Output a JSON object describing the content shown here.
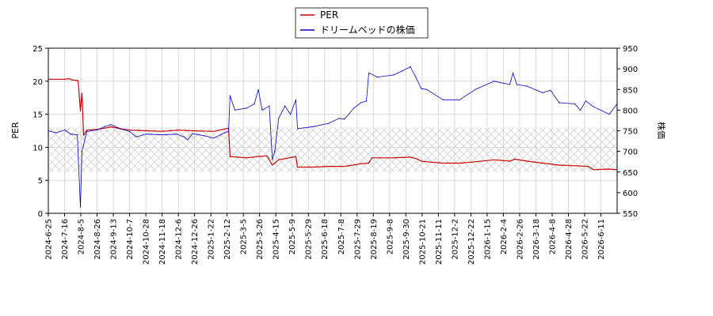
{
  "chart_data": {
    "type": "line",
    "legend": {
      "placement": "top-center",
      "entries": [
        {
          "name": "PER",
          "color": "#cc0000"
        },
        {
          "name": "ドリームベッドの株価",
          "color": "#0000cc"
        }
      ]
    },
    "xlabel": "",
    "ylabel_left": "PER",
    "ylabel_right": "株価",
    "ylim_left": [
      0,
      25
    ],
    "ylim_right": [
      550,
      950
    ],
    "yticks_left": [
      0,
      5,
      10,
      15,
      20,
      25
    ],
    "yticks_right": [
      550,
      600,
      650,
      700,
      750,
      800,
      850,
      900,
      950
    ],
    "grid": true,
    "xlim": [
      "2024-06-25",
      "2026-06-21"
    ],
    "x_tick_labels": [
      "2024-6-25",
      "2024-7-16",
      "2024-8-5",
      "2024-8-26",
      "2024-9-13",
      "2024-10-7",
      "2024-10-28",
      "2024-11-18",
      "2024-12-6",
      "2024-12-26",
      "2025-1-22",
      "2025-2-12",
      "2025-3-5",
      "2025-3-26",
      "2025-4-15",
      "2025-5-9",
      "2025-5-29",
      "2025-6-18",
      "2025-7-8",
      "2025-7-29",
      "2025-8-19",
      "2025-9-8",
      "2025-9-30",
      "2025-10-21",
      "2025-11-11",
      "2025-12-2",
      "2025-12-22",
      "2026-1-15",
      "2026-2-4",
      "2026-2-26",
      "2026-3-18",
      "2026-4-8",
      "2026-4-28",
      "2026-5-22",
      "2026-6-11"
    ],
    "shaded_band": {
      "axis": "left",
      "y_range": [
        6.2,
        13.0
      ],
      "pattern": "crosshatch"
    },
    "series": [
      {
        "name": "PER",
        "axis": "left",
        "color": "#cc0000",
        "points": [
          [
            "2024-06-25",
            20.3
          ],
          [
            "2024-07-16",
            20.3
          ],
          [
            "2024-07-22",
            20.4
          ],
          [
            "2024-07-25",
            20.2
          ],
          [
            "2024-08-02",
            20.1
          ],
          [
            "2024-08-05",
            15.5
          ],
          [
            "2024-08-07",
            18.2
          ],
          [
            "2024-08-09",
            11.8
          ],
          [
            "2024-08-13",
            12.6
          ],
          [
            "2024-08-26",
            12.7
          ],
          [
            "2024-09-05",
            12.9
          ],
          [
            "2024-09-13",
            13.1
          ],
          [
            "2024-09-25",
            12.8
          ],
          [
            "2024-10-07",
            12.6
          ],
          [
            "2024-10-28",
            12.5
          ],
          [
            "2024-11-18",
            12.4
          ],
          [
            "2024-12-06",
            12.6
          ],
          [
            "2024-12-26",
            12.5
          ],
          [
            "2025-01-22",
            12.4
          ],
          [
            "2025-02-03",
            12.7
          ],
          [
            "2025-02-10",
            12.9
          ],
          [
            "2025-02-12",
            8.6
          ],
          [
            "2025-03-05",
            8.4
          ],
          [
            "2025-03-20",
            8.6
          ],
          [
            "2025-03-31",
            8.7
          ],
          [
            "2025-04-07",
            7.3
          ],
          [
            "2025-04-15",
            8.1
          ],
          [
            "2025-05-07",
            8.6
          ],
          [
            "2025-05-09",
            7.0
          ],
          [
            "2025-05-29",
            7.0
          ],
          [
            "2025-06-18",
            7.1
          ],
          [
            "2025-07-08",
            7.1
          ],
          [
            "2025-07-29",
            7.5
          ],
          [
            "2025-08-08",
            7.6
          ],
          [
            "2025-08-12",
            8.4
          ],
          [
            "2025-08-19",
            8.4
          ],
          [
            "2025-09-08",
            8.4
          ],
          [
            "2025-09-30",
            8.5
          ],
          [
            "2025-10-07",
            8.3
          ],
          [
            "2025-10-14",
            7.9
          ],
          [
            "2025-10-21",
            7.8
          ],
          [
            "2025-11-11",
            7.6
          ],
          [
            "2025-12-02",
            7.6
          ],
          [
            "2025-12-22",
            7.8
          ],
          [
            "2026-01-15",
            8.1
          ],
          [
            "2026-02-04",
            7.9
          ],
          [
            "2026-02-10",
            8.2
          ],
          [
            "2026-02-26",
            7.9
          ],
          [
            "2026-03-18",
            7.6
          ],
          [
            "2026-04-08",
            7.3
          ],
          [
            "2026-04-28",
            7.2
          ],
          [
            "2026-05-15",
            7.1
          ],
          [
            "2026-05-22",
            6.6
          ],
          [
            "2026-06-11",
            6.7
          ],
          [
            "2026-06-21",
            6.6
          ]
        ]
      },
      {
        "name": "ドリームベッドの株価",
        "axis": "right",
        "color": "#0000cc",
        "points": [
          [
            "2024-06-25",
            750
          ],
          [
            "2024-07-05",
            745
          ],
          [
            "2024-07-16",
            752
          ],
          [
            "2024-07-23",
            742
          ],
          [
            "2024-08-01",
            740
          ],
          [
            "2024-08-05",
            565
          ],
          [
            "2024-08-07",
            700
          ],
          [
            "2024-08-13",
            748
          ],
          [
            "2024-08-26",
            752
          ],
          [
            "2024-09-05",
            760
          ],
          [
            "2024-09-13",
            765
          ],
          [
            "2024-09-25",
            755
          ],
          [
            "2024-10-07",
            748
          ],
          [
            "2024-10-15",
            735
          ],
          [
            "2024-10-28",
            742
          ],
          [
            "2024-11-18",
            740
          ],
          [
            "2024-12-06",
            742
          ],
          [
            "2024-12-15",
            735
          ],
          [
            "2024-12-20",
            728
          ],
          [
            "2024-12-26",
            743
          ],
          [
            "2025-01-10",
            738
          ],
          [
            "2025-01-22",
            732
          ],
          [
            "2025-02-05",
            745
          ],
          [
            "2025-02-10",
            748
          ],
          [
            "2025-02-12",
            835
          ],
          [
            "2025-02-18",
            800
          ],
          [
            "2025-03-05",
            805
          ],
          [
            "2025-03-15",
            815
          ],
          [
            "2025-03-20",
            850
          ],
          [
            "2025-03-25",
            800
          ],
          [
            "2025-04-03",
            810
          ],
          [
            "2025-04-07",
            680
          ],
          [
            "2025-04-10",
            700
          ],
          [
            "2025-04-15",
            780
          ],
          [
            "2025-04-23",
            810
          ],
          [
            "2025-04-30",
            790
          ],
          [
            "2025-05-07",
            825
          ],
          [
            "2025-05-09",
            755
          ],
          [
            "2025-05-29",
            760
          ],
          [
            "2025-06-18",
            768
          ],
          [
            "2025-07-01",
            780
          ],
          [
            "2025-07-08",
            778
          ],
          [
            "2025-07-20",
            805
          ],
          [
            "2025-07-29",
            818
          ],
          [
            "2025-08-05",
            822
          ],
          [
            "2025-08-08",
            890
          ],
          [
            "2025-08-19",
            880
          ],
          [
            "2025-09-08",
            885
          ],
          [
            "2025-09-20",
            895
          ],
          [
            "2025-09-30",
            905
          ],
          [
            "2025-10-07",
            880
          ],
          [
            "2025-10-14",
            852
          ],
          [
            "2025-10-21",
            850
          ],
          [
            "2025-11-11",
            825
          ],
          [
            "2025-12-02",
            825
          ],
          [
            "2025-12-22",
            850
          ],
          [
            "2026-01-15",
            870
          ],
          [
            "2026-02-04",
            862
          ],
          [
            "2026-02-08",
            890
          ],
          [
            "2026-02-13",
            862
          ],
          [
            "2026-02-26",
            858
          ],
          [
            "2026-03-18",
            842
          ],
          [
            "2026-03-28",
            848
          ],
          [
            "2026-04-08",
            818
          ],
          [
            "2026-04-28",
            815
          ],
          [
            "2026-05-05",
            800
          ],
          [
            "2026-05-12",
            822
          ],
          [
            "2026-05-22",
            808
          ],
          [
            "2026-06-11",
            790
          ],
          [
            "2026-06-21",
            815
          ]
        ]
      }
    ]
  }
}
